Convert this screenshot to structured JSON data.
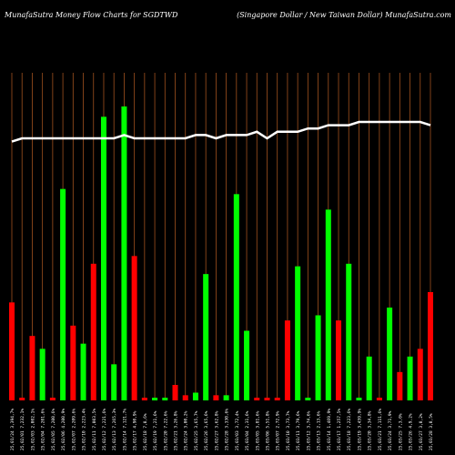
{
  "header": {
    "left": "MunafaSutra  Money Flow  Charts for SGDTWD",
    "right": "(Singapore   Dollar / New  Taiwan  Dollar) MunafaSutra.com"
  },
  "colors": {
    "background": "#000000",
    "up": "#00ff00",
    "down": "#ff0000",
    "grid": "#a0521e",
    "line": "#ffffff",
    "text": "#ffffff"
  },
  "chart_data": {
    "type": "bar",
    "title": "MunafaSutra  Money Flow  Charts for SGDTWD",
    "subtitle": "(Singapore   Dollar / New  Taiwan  Dollar) MunafaSutra.com",
    "categories": [
      "25,01/24 3,394,7%",
      "25,02/01 7,232,1%",
      "25,02/03 2,002,1%",
      "25,02/04 7,201,6%",
      "25,02/05 7,200,6%",
      "25,02/06 4,200,9%",
      "25,02/07 2,209,6%",
      "25,02/10 2,223,4%",
      "25,02/11 7,003,5%",
      "25,02/12 7,221,6%",
      "25,02/13 7,265,3%",
      "25,02/14 7,121,7%",
      "25,02/17 4,90,9%",
      "25,02/18 7,0,6%",
      "25,02/19 7,21,6%",
      "25,02/20 7,22,6%",
      "25,02/21 3,26,8%",
      "25,02/24 3,00,2%",
      "25,02/25 3,65,7%",
      "25,02/26 3,65,6%",
      "25,02/27 3,62,8%",
      "25,02/28 3,330,6%",
      "25,03/03 3,72,4%",
      "25,03/04 2,31,6%",
      "25,03/05 3,81,6%",
      "25,03/06 5,51,8%",
      "25,03/07 2,72,9%",
      "25,03/10 3,73,7%",
      "25,03/11 3,79,6%",
      "25,03/12 3,74,6%",
      "25,03/13 2,13,6%",
      "25,03/14 1,469,9%",
      "25,03/17 1,257,5%",
      "25,03/18 7,223,6%",
      "25,03/19 3,459,9%",
      "25,03/20 3,34,8%",
      "25,03/21 7,111,6%",
      "25,03/24 3,71,9%",
      "25,03/25 7,3,0%",
      "25,03/26 4,9,2%",
      "25,03/27 3,0,2%",
      "25,03/28 3,0,5%"
    ],
    "values": [
      -0.38,
      0.01,
      -0.25,
      0.2,
      0.01,
      0.82,
      -0.29,
      0.22,
      -0.53,
      1.1,
      0.14,
      1.14,
      -0.56,
      0.01,
      0.01,
      0.01,
      -0.06,
      -0.02,
      0.03,
      0.49,
      -0.02,
      0.02,
      0.8,
      0.27,
      0.01,
      0.01,
      0.01,
      -0.31,
      0.52,
      0.01,
      0.33,
      0.74,
      0.31,
      0.53,
      0.01,
      0.17,
      0.01,
      0.36,
      0.11,
      0.17,
      0.2,
      0.42
    ],
    "colors": [
      "down",
      "down",
      "down",
      "up",
      "down",
      "up",
      "down",
      "up",
      "down",
      "up",
      "up",
      "up",
      "down",
      "down",
      "up",
      "up",
      "down",
      "down",
      "up",
      "up",
      "down",
      "up",
      "up",
      "up",
      "down",
      "down",
      "down",
      "down",
      "up",
      "up",
      "up",
      "up",
      "down",
      "up",
      "up",
      "up",
      "down",
      "up",
      "down",
      "up",
      "down",
      "down"
    ],
    "line": [
      0.79,
      0.8,
      0.8,
      0.8,
      0.8,
      0.8,
      0.8,
      0.8,
      0.8,
      0.8,
      0.8,
      0.81,
      0.8,
      0.8,
      0.8,
      0.8,
      0.8,
      0.8,
      0.81,
      0.81,
      0.8,
      0.81,
      0.81,
      0.81,
      0.82,
      0.8,
      0.82,
      0.82,
      0.82,
      0.83,
      0.83,
      0.84,
      0.84,
      0.84,
      0.85,
      0.85,
      0.85,
      0.85,
      0.85,
      0.85,
      0.85,
      0.84
    ],
    "grid": true,
    "legend": "none"
  }
}
